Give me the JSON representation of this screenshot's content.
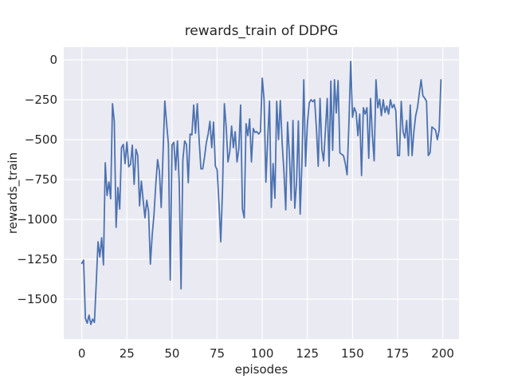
{
  "chart_data": {
    "type": "line",
    "title": "rewards_train of DDPG",
    "xlabel": "episodes",
    "ylabel": "rewards_train",
    "xlim": [
      -10,
      209
    ],
    "ylim": [
      -1750,
      80
    ],
    "xticks": [
      0,
      25,
      50,
      75,
      100,
      125,
      150,
      175,
      200
    ],
    "yticks": [
      0,
      -250,
      -500,
      -750,
      -1000,
      -1250,
      -1500
    ],
    "grid": true,
    "legend": false,
    "style": {
      "fig_bg": "#ffffff",
      "axes_bg": "#eaeaf2",
      "grid_color": "#ffffff",
      "line_color": "#4c72b0",
      "text_color": "#262626"
    },
    "series": [
      {
        "name": "rewards_train",
        "color": "#4c72b0",
        "x_start": 0,
        "x_step": 1,
        "values": [
          -1275,
          -1255,
          -1620,
          -1650,
          -1600,
          -1658,
          -1625,
          -1645,
          -1400,
          -1140,
          -1235,
          -1115,
          -1285,
          -645,
          -850,
          -765,
          -870,
          -275,
          -385,
          -1050,
          -800,
          -935,
          -550,
          -530,
          -650,
          -515,
          -670,
          -655,
          -535,
          -780,
          -560,
          -600,
          -915,
          -760,
          -880,
          -990,
          -880,
          -950,
          -1280,
          -1100,
          -970,
          -780,
          -625,
          -700,
          -925,
          -590,
          -258,
          -400,
          -530,
          -1380,
          -533,
          -517,
          -690,
          -508,
          -780,
          -1435,
          -625,
          -508,
          -530,
          -770,
          -465,
          -470,
          -283,
          -460,
          -275,
          -500,
          -683,
          -683,
          -610,
          -520,
          -465,
          -385,
          -550,
          -390,
          -665,
          -690,
          -900,
          -1140,
          -800,
          -275,
          -420,
          -640,
          -575,
          -415,
          -550,
          -450,
          -640,
          -560,
          -283,
          -935,
          -990,
          -400,
          -475,
          -370,
          -640,
          -430,
          -455,
          -450,
          -465,
          -450,
          -115,
          -250,
          -767,
          -500,
          -258,
          -925,
          -650,
          -867,
          -260,
          -500,
          -255,
          -520,
          -700,
          -940,
          -390,
          -590,
          -880,
          -380,
          -930,
          -767,
          -383,
          -967,
          -640,
          -125,
          -667,
          -400,
          -270,
          -250,
          -262,
          -250,
          -430,
          -667,
          -242,
          -560,
          -633,
          -440,
          -242,
          -667,
          -133,
          -567,
          -125,
          -333,
          -130,
          -583,
          -592,
          -600,
          -650,
          -720,
          -400,
          -10,
          -360,
          -300,
          -330,
          -475,
          -340,
          -725,
          -300,
          -340,
          -300,
          -617,
          -242,
          -475,
          -633,
          -125,
          -300,
          -247,
          -350,
          -250,
          -330,
          -290,
          -340,
          -250,
          -300,
          -280,
          -320,
          -600,
          -600,
          -260,
          -450,
          -490,
          -380,
          -600,
          -283,
          -600,
          -450,
          -350,
          -300,
          -210,
          -125,
          -225,
          -240,
          -260,
          -600,
          -580,
          -420,
          -430,
          -440,
          -500,
          -440,
          -125
        ]
      }
    ]
  }
}
